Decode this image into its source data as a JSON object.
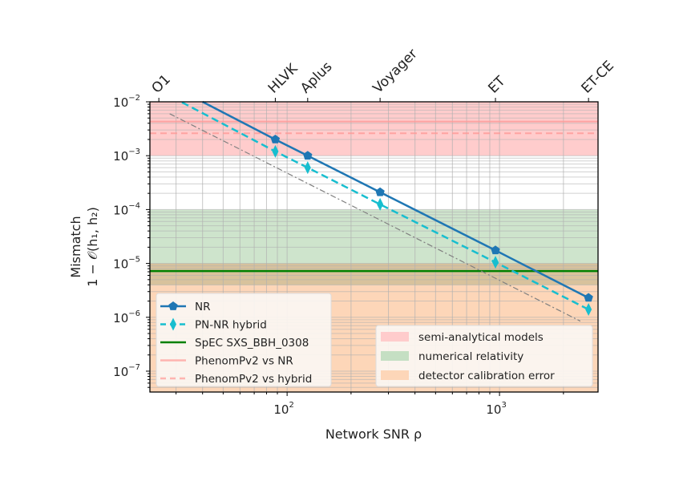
{
  "chart_data": {
    "type": "line",
    "xlabel": "Network SNR ρ",
    "ylabel_line1": "Mismatch",
    "ylabel_line2": "1 − 𝒪(h₁, h₂)",
    "xscale": "log",
    "yscale": "log",
    "xlim": [
      22.6,
      2910
    ],
    "ylim": [
      4.1e-08,
      0.01
    ],
    "grid": "on (major and minor)",
    "x_ticks": [
      {
        "value": 100,
        "base": "10",
        "exp": "2"
      },
      {
        "value": 1000,
        "base": "10",
        "exp": "3"
      }
    ],
    "y_ticks": [
      {
        "value": 0.01,
        "base": "10",
        "exp": "−2"
      },
      {
        "value": 0.001,
        "base": "10",
        "exp": "−3"
      },
      {
        "value": 0.0001,
        "base": "10",
        "exp": "−4"
      },
      {
        "value": 1e-05,
        "base": "10",
        "exp": "−5"
      },
      {
        "value": 1e-06,
        "base": "10",
        "exp": "−6"
      },
      {
        "value": 1e-07,
        "base": "10",
        "exp": "−7"
      }
    ],
    "top_axis_detectors": [
      {
        "label": "O1",
        "snr": 24.9
      },
      {
        "label": "HLVK",
        "snr": 88
      },
      {
        "label": "Aplus",
        "snr": 125
      },
      {
        "label": "Voyager",
        "snr": 274
      },
      {
        "label": "ET",
        "snr": 957
      },
      {
        "label": "ET-CE",
        "snr": 2625
      }
    ],
    "series": [
      {
        "name": "NR",
        "color": "#1f77b4",
        "style": "solid",
        "marker": "pentagon",
        "x": [
          88,
          125,
          274,
          957,
          2625
        ],
        "y": [
          0.002,
          0.001,
          0.00021,
          1.75e-05,
          2.3e-06
        ],
        "trend_from": [
          40,
          0.01
        ]
      },
      {
        "name": "PN-NR hybrid",
        "color": "#17becf",
        "style": "dashed",
        "marker": "thin-diamond",
        "x": [
          88,
          125,
          274,
          957,
          2625
        ],
        "y": [
          0.0012,
          0.0006,
          0.000125,
          1.05e-05,
          1.4e-06
        ],
        "trend_from": [
          32,
          0.0098
        ]
      },
      {
        "name": "SpEC SXS_BBH_0308",
        "color": "#008000",
        "style": "solid",
        "hline": 7.2e-06
      },
      {
        "name": "PhenomPv2 vs NR",
        "color": "#ff9896",
        "style": "solid",
        "hline": 0.0043
      },
      {
        "name": "PhenomPv2 vs hybrid",
        "color": "#ff9896",
        "style": "dashed",
        "hline": 0.0026
      }
    ],
    "reference_line": {
      "color": "#808080",
      "style": "dashdot",
      "x": [
        28,
        2400
      ],
      "y": [
        0.006,
        8.5e-07
      ]
    },
    "bands": [
      {
        "name": "semi-analytical models",
        "color": "#ffcccc",
        "ymin": 0.001,
        "ymax": 0.01
      },
      {
        "name": "numerical relativity",
        "color": "#c5dfc3",
        "ymin": 4e-06,
        "ymax": 0.0001
      },
      {
        "name": "detector calibration error",
        "color": "#fdd6b8",
        "ymin": 4.1e-08,
        "ymax": 1e-05
      }
    ],
    "legend_lines_placement": "lower-left",
    "legend_bands_placement": "lower-right"
  }
}
